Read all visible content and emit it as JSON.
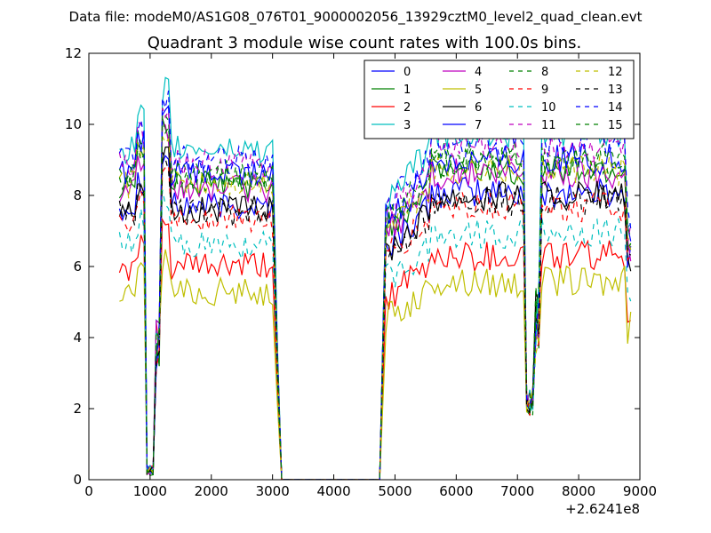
{
  "chart_data": {
    "type": "line",
    "suptitle": "Data file: modeM0/AS1G08_076T01_9000002056_13929cztM0_level2_quad_clean.evt",
    "title": "Quadrant 3 module wise count rates with 100.0s bins.",
    "xlabel": "",
    "ylabel": "",
    "x_offset_label": "+2.6241e8",
    "xlim": [
      0,
      9000
    ],
    "ylim": [
      0,
      12
    ],
    "x_ticks": [
      0,
      1000,
      2000,
      3000,
      4000,
      5000,
      6000,
      7000,
      8000,
      9000
    ],
    "y_ticks": [
      0,
      2,
      4,
      6,
      8,
      10,
      12
    ],
    "legend_position": "top-right",
    "legend_columns": 4,
    "segments": [
      {
        "t_start": 500,
        "t_end": 3150,
        "dips": [
          [
            1000,
            0.1
          ],
          [
            1100,
            3.5
          ]
        ]
      },
      {
        "t_start": 4750,
        "t_end": 8850,
        "dips": [
          [
            7200,
            2.0
          ],
          [
            7300,
            2.8
          ]
        ]
      }
    ],
    "series": [
      {
        "name": "0",
        "color": "#0000ff",
        "dash": "solid",
        "level": 7.7
      },
      {
        "name": "1",
        "color": "#008000",
        "dash": "solid",
        "level": 8.3
      },
      {
        "name": "2",
        "color": "#ff0000",
        "dash": "solid",
        "level": 6.0
      },
      {
        "name": "3",
        "color": "#00bfbf",
        "dash": "solid",
        "level": 9.3
      },
      {
        "name": "4",
        "color": "#bf00bf",
        "dash": "solid",
        "level": 8.2
      },
      {
        "name": "5",
        "color": "#bfbf00",
        "dash": "solid",
        "level": 5.3
      },
      {
        "name": "6",
        "color": "#000000",
        "dash": "solid",
        "level": 7.6
      },
      {
        "name": "7",
        "color": "#0000ff",
        "dash": "solid",
        "level": 8.6
      },
      {
        "name": "8",
        "color": "#008000",
        "dash": "dashed",
        "level": 8.6
      },
      {
        "name": "9",
        "color": "#ff0000",
        "dash": "dashed",
        "level": 7.3
      },
      {
        "name": "10",
        "color": "#00bfbf",
        "dash": "dashed",
        "level": 6.6
      },
      {
        "name": "11",
        "color": "#bf00bf",
        "dash": "dashed",
        "level": 8.9
      },
      {
        "name": "12",
        "color": "#bfbf00",
        "dash": "dashed",
        "level": 8.3
      },
      {
        "name": "13",
        "color": "#000000",
        "dash": "dashed",
        "level": 7.5
      },
      {
        "name": "14",
        "color": "#0000ff",
        "dash": "dashed",
        "level": 9.0
      },
      {
        "name": "15",
        "color": "#008000",
        "dash": "dashed",
        "level": 8.5
      }
    ]
  }
}
